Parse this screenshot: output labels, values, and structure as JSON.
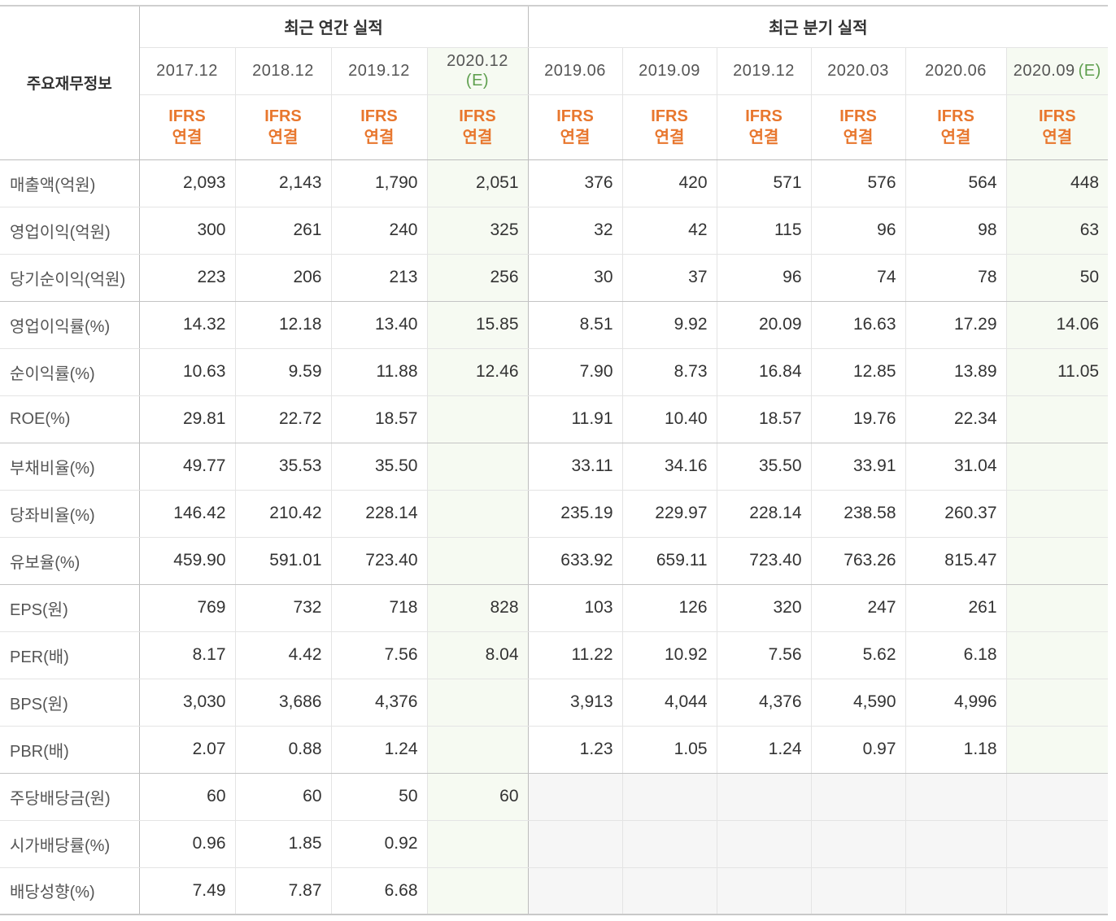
{
  "colors": {
    "ifrs_label": "#e8772e",
    "estimate_label": "#5f9f4f",
    "estimate_column_bg": "#f6faf2",
    "unavailable_bg": "#f6f6f6"
  },
  "table": {
    "corner_label": "주요재무정보",
    "group_headers": [
      {
        "label": "최근 연간 실적"
      },
      {
        "label": "최근 분기 실적"
      }
    ],
    "periods": [
      {
        "date": "2017.12",
        "est": ""
      },
      {
        "date": "2018.12",
        "est": ""
      },
      {
        "date": "2019.12",
        "est": ""
      },
      {
        "date": "2020.12",
        "est": "(E)"
      },
      {
        "date": "2019.06",
        "est": ""
      },
      {
        "date": "2019.09",
        "est": ""
      },
      {
        "date": "2019.12",
        "est": ""
      },
      {
        "date": "2020.03",
        "est": ""
      },
      {
        "date": "2020.06",
        "est": ""
      },
      {
        "date": "2020.09",
        "est": "(E)"
      }
    ],
    "accounting_standard": {
      "line1": "IFRS",
      "line2": "연결"
    },
    "rows": [
      {
        "label": "매출액(억원)",
        "values": [
          "2,093",
          "2,143",
          "1,790",
          "2,051",
          "376",
          "420",
          "571",
          "576",
          "564",
          "448"
        ]
      },
      {
        "label": "영업이익(억원)",
        "values": [
          "300",
          "261",
          "240",
          "325",
          "32",
          "42",
          "115",
          "96",
          "98",
          "63"
        ]
      },
      {
        "label": "당기순이익(억원)",
        "values": [
          "223",
          "206",
          "213",
          "256",
          "30",
          "37",
          "96",
          "74",
          "78",
          "50"
        ]
      },
      {
        "label": "영업이익률(%)",
        "values": [
          "14.32",
          "12.18",
          "13.40",
          "15.85",
          "8.51",
          "9.92",
          "20.09",
          "16.63",
          "17.29",
          "14.06"
        ]
      },
      {
        "label": "순이익률(%)",
        "values": [
          "10.63",
          "9.59",
          "11.88",
          "12.46",
          "7.90",
          "8.73",
          "16.84",
          "12.85",
          "13.89",
          "11.05"
        ]
      },
      {
        "label": "ROE(%)",
        "values": [
          "29.81",
          "22.72",
          "18.57",
          "",
          "11.91",
          "10.40",
          "18.57",
          "19.76",
          "22.34",
          ""
        ]
      },
      {
        "label": "부채비율(%)",
        "values": [
          "49.77",
          "35.53",
          "35.50",
          "",
          "33.11",
          "34.16",
          "35.50",
          "33.91",
          "31.04",
          ""
        ]
      },
      {
        "label": "당좌비율(%)",
        "values": [
          "146.42",
          "210.42",
          "228.14",
          "",
          "235.19",
          "229.97",
          "228.14",
          "238.58",
          "260.37",
          ""
        ]
      },
      {
        "label": "유보율(%)",
        "values": [
          "459.90",
          "591.01",
          "723.40",
          "",
          "633.92",
          "659.11",
          "723.40",
          "763.26",
          "815.47",
          ""
        ]
      },
      {
        "label": "EPS(원)",
        "values": [
          "769",
          "732",
          "718",
          "828",
          "103",
          "126",
          "320",
          "247",
          "261",
          ""
        ]
      },
      {
        "label": "PER(배)",
        "values": [
          "8.17",
          "4.42",
          "7.56",
          "8.04",
          "11.22",
          "10.92",
          "7.56",
          "5.62",
          "6.18",
          ""
        ]
      },
      {
        "label": "BPS(원)",
        "values": [
          "3,030",
          "3,686",
          "4,376",
          "",
          "3,913",
          "4,044",
          "4,376",
          "4,590",
          "4,996",
          ""
        ]
      },
      {
        "label": "PBR(배)",
        "values": [
          "2.07",
          "0.88",
          "1.24",
          "",
          "1.23",
          "1.05",
          "1.24",
          "0.97",
          "1.18",
          ""
        ]
      },
      {
        "label": "주당배당금(원)",
        "values": [
          "60",
          "60",
          "50",
          "60",
          "",
          "",
          "",
          "",
          "",
          ""
        ]
      },
      {
        "label": "시가배당률(%)",
        "values": [
          "0.96",
          "1.85",
          "0.92",
          "",
          "",
          "",
          "",
          "",
          "",
          ""
        ]
      },
      {
        "label": "배당성향(%)",
        "values": [
          "7.49",
          "7.87",
          "6.68",
          "",
          "",
          "",
          "",
          "",
          "",
          ""
        ]
      }
    ]
  }
}
